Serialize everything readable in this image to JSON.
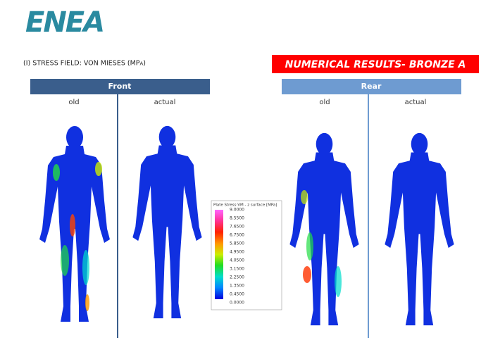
{
  "header": {
    "logo": "ENEA",
    "title": "(I) STRESS FIELD: VON MIESES (MPa)",
    "banner": "NUMERICAL RESULTS- BRONZE A"
  },
  "panels": [
    {
      "title": "Front",
      "columns": [
        "old",
        "actual"
      ]
    },
    {
      "title": "Rear",
      "columns": [
        "old",
        "actual"
      ]
    }
  ],
  "legend": {
    "title": "Plate Stress:VM - z surface [MPa]",
    "labels": [
      "9.0000",
      "8.5500",
      "7.6500",
      "6.7500",
      "5.8500",
      "4.9500",
      "4.0500",
      "3.1500",
      "2.2500",
      "1.3500",
      "0.4500",
      "0.0000"
    ]
  }
}
